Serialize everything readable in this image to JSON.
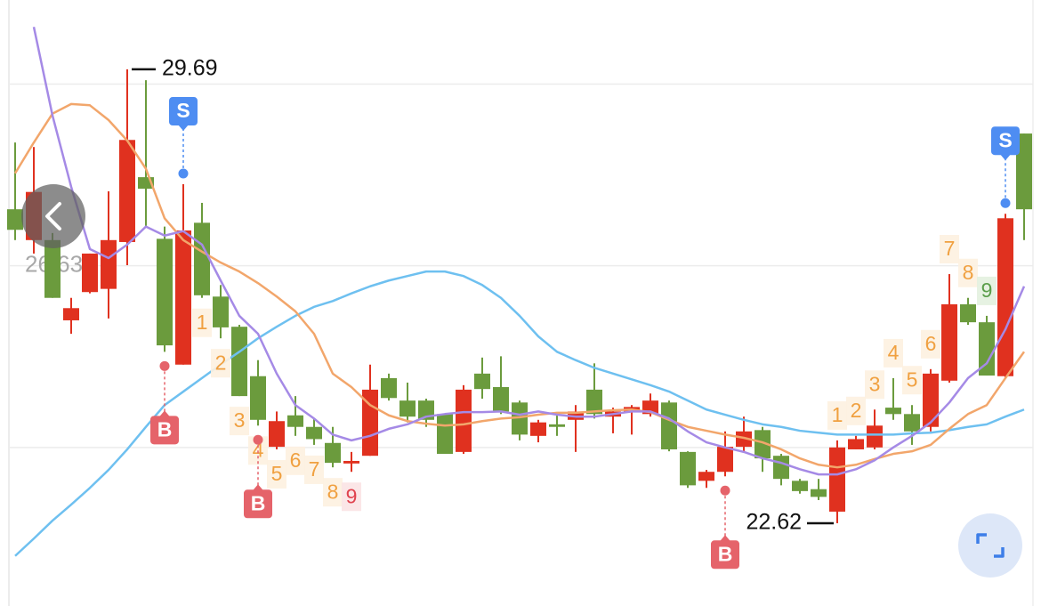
{
  "chart_data": {
    "type": "candlestick",
    "ylim": [
      21.33,
      30.77
    ],
    "yticks": [
      26.63
    ],
    "gridlines": [
      29.46,
      26.63,
      23.8
    ],
    "up_color": "#e0311f",
    "down_color": "#6b9b3d",
    "open": [
      27.51,
      27.03,
      27.03,
      25.78,
      26.22,
      26.27,
      27.0,
      28.01,
      27.05,
      25.09,
      27.3,
      26.15,
      25.68,
      24.91,
      23.81,
      24.3,
      24.12,
      23.87,
      23.55,
      23.67,
      24.88,
      24.53,
      24.53,
      24.32,
      23.73,
      24.95,
      24.74,
      24.5,
      23.98,
      24.16,
      24.23,
      24.7,
      24.28,
      24.36,
      24.32,
      24.5,
      23.73,
      23.28,
      23.42,
      23.81,
      24.07,
      23.67,
      23.28,
      23.15,
      22.8,
      23.77,
      23.8,
      24.42,
      24.32,
      24.12,
      24.84,
      26.03,
      25.75,
      24.91,
      28.69
    ],
    "high": [
      28.55,
      28.48,
      27.14,
      26.13,
      26.82,
      27.79,
      29.69,
      29.52,
      27.24,
      27.9,
      27.61,
      26.33,
      25.71,
      25.16,
      24.36,
      24.6,
      24.25,
      24.12,
      23.73,
      25.09,
      24.95,
      24.81,
      24.56,
      24.32,
      24.77,
      25.2,
      25.22,
      24.53,
      24.23,
      24.32,
      24.46,
      25.11,
      24.42,
      24.46,
      24.64,
      24.53,
      23.74,
      23.45,
      24.05,
      24.28,
      24.12,
      23.7,
      23.31,
      23.31,
      23.91,
      23.98,
      24.39,
      24.88,
      24.46,
      25.02,
      26.5,
      26.13,
      25.85,
      27.44,
      28.69
    ],
    "low": [
      27.03,
      26.82,
      26.13,
      25.57,
      26.2,
      25.81,
      26.64,
      27.24,
      25.29,
      25.09,
      26.13,
      25.5,
      24.6,
      24.14,
      23.77,
      23.98,
      23.84,
      23.49,
      23.42,
      23.67,
      24.53,
      24.19,
      24.12,
      23.7,
      23.7,
      24.56,
      24.32,
      23.91,
      23.88,
      23.98,
      23.73,
      24.25,
      24.02,
      24.0,
      24.28,
      23.74,
      23.17,
      23.17,
      23.35,
      23.73,
      23.42,
      23.21,
      23.08,
      22.98,
      22.62,
      23.77,
      23.77,
      24.23,
      23.84,
      24.05,
      24.81,
      25.71,
      24.92,
      24.88,
      27.03
    ],
    "close": [
      27.19,
      27.78,
      26.13,
      25.97,
      26.82,
      27.03,
      28.59,
      27.83,
      25.39,
      27.18,
      26.17,
      25.67,
      24.6,
      24.23,
      24.21,
      24.12,
      23.93,
      23.56,
      23.59,
      24.7,
      24.57,
      24.28,
      24.23,
      23.7,
      24.7,
      24.71,
      24.36,
      24.0,
      24.19,
      24.12,
      24.36,
      24.32,
      24.36,
      24.43,
      24.53,
      23.77,
      23.21,
      23.42,
      23.81,
      24.05,
      23.63,
      23.31,
      23.12,
      23.03,
      23.8,
      23.93,
      24.14,
      24.32,
      24.05,
      24.95,
      26.03,
      25.75,
      24.92,
      27.37,
      27.51
    ],
    "series": [
      {
        "color": "#6ec0f0",
        "values": [
          22.11,
          22.38,
          22.66,
          22.91,
          23.17,
          23.45,
          23.77,
          24.12,
          24.46,
          24.67,
          24.88,
          25.09,
          25.29,
          25.5,
          25.68,
          25.85,
          25.99,
          26.08,
          26.2,
          26.31,
          26.4,
          26.47,
          26.54,
          26.54,
          26.47,
          26.33,
          26.13,
          25.85,
          25.53,
          25.29,
          25.16,
          25.04,
          24.95,
          24.86,
          24.77,
          24.67,
          24.53,
          24.39,
          24.31,
          24.23,
          24.16,
          24.12,
          24.06,
          24.03,
          24.0,
          24.0,
          24.0,
          24.0,
          24.02,
          24.03,
          24.07,
          24.12,
          24.16,
          24.28,
          24.39
        ]
      },
      {
        "color": "#f2a66b",
        "values": [
          28.07,
          28.55,
          29.0,
          29.15,
          29.13,
          28.9,
          28.58,
          28.14,
          27.37,
          27.03,
          26.85,
          26.68,
          26.54,
          26.36,
          26.15,
          25.92,
          25.57,
          24.95,
          24.74,
          24.46,
          24.3,
          24.21,
          24.17,
          24.14,
          24.16,
          24.21,
          24.25,
          24.27,
          24.31,
          24.34,
          24.34,
          24.36,
          24.38,
          24.39,
          24.35,
          24.23,
          24.12,
          24.06,
          24.0,
          23.95,
          23.88,
          23.77,
          23.63,
          23.53,
          23.49,
          23.53,
          23.62,
          23.7,
          23.74,
          23.84,
          24.09,
          24.32,
          24.46,
          24.88,
          25.29
        ]
      },
      {
        "color": "#a58ae6",
        "values": [
          null,
          30.35,
          28.97,
          27.86,
          26.89,
          26.75,
          26.96,
          27.24,
          27.1,
          27.17,
          26.96,
          26.4,
          25.85,
          25.57,
          24.95,
          24.46,
          24.25,
          24.0,
          23.91,
          23.98,
          24.09,
          24.16,
          24.28,
          24.32,
          24.35,
          24.35,
          24.36,
          24.31,
          24.36,
          24.31,
          24.28,
          24.28,
          24.32,
          24.36,
          24.36,
          24.25,
          24.05,
          23.88,
          23.8,
          23.73,
          23.63,
          23.56,
          23.46,
          23.38,
          23.38,
          23.46,
          23.6,
          23.8,
          23.98,
          24.19,
          24.5,
          24.88,
          25.11,
          25.64,
          26.31
        ]
      }
    ],
    "high_mark": 6,
    "low_mark": 44,
    "sell_color": "#4e8df2",
    "buy_color": "#e5636a",
    "signals": [
      {
        "label": "S",
        "kind": "sell",
        "candle": 9
      },
      {
        "label": "B",
        "kind": "buy",
        "candle": 8
      },
      {
        "label": "B",
        "kind": "buy",
        "candle": 13
      },
      {
        "label": "B",
        "kind": "buy",
        "candle": 38
      },
      {
        "label": "S",
        "kind": "sell",
        "candle": 53
      }
    ],
    "count_color": "#f0a040",
    "count_bg": "#fdf1e0",
    "setups": [
      {
        "place": "below",
        "candles": [
          10,
          11,
          12,
          13,
          14,
          15,
          16,
          17,
          18
        ],
        "counts": [
          1,
          2,
          3,
          4,
          5,
          6,
          7,
          8,
          9
        ],
        "final_color": "#e0434f",
        "final_bg": "#fbe3e4"
      },
      {
        "place": "above",
        "candles": [
          44,
          45,
          46,
          47,
          48,
          49,
          50,
          51,
          52
        ],
        "counts": [
          1,
          2,
          3,
          4,
          5,
          6,
          7,
          8,
          9
        ],
        "final_color": "#5a9e4a",
        "final_bg": "#e3f1df"
      }
    ]
  }
}
